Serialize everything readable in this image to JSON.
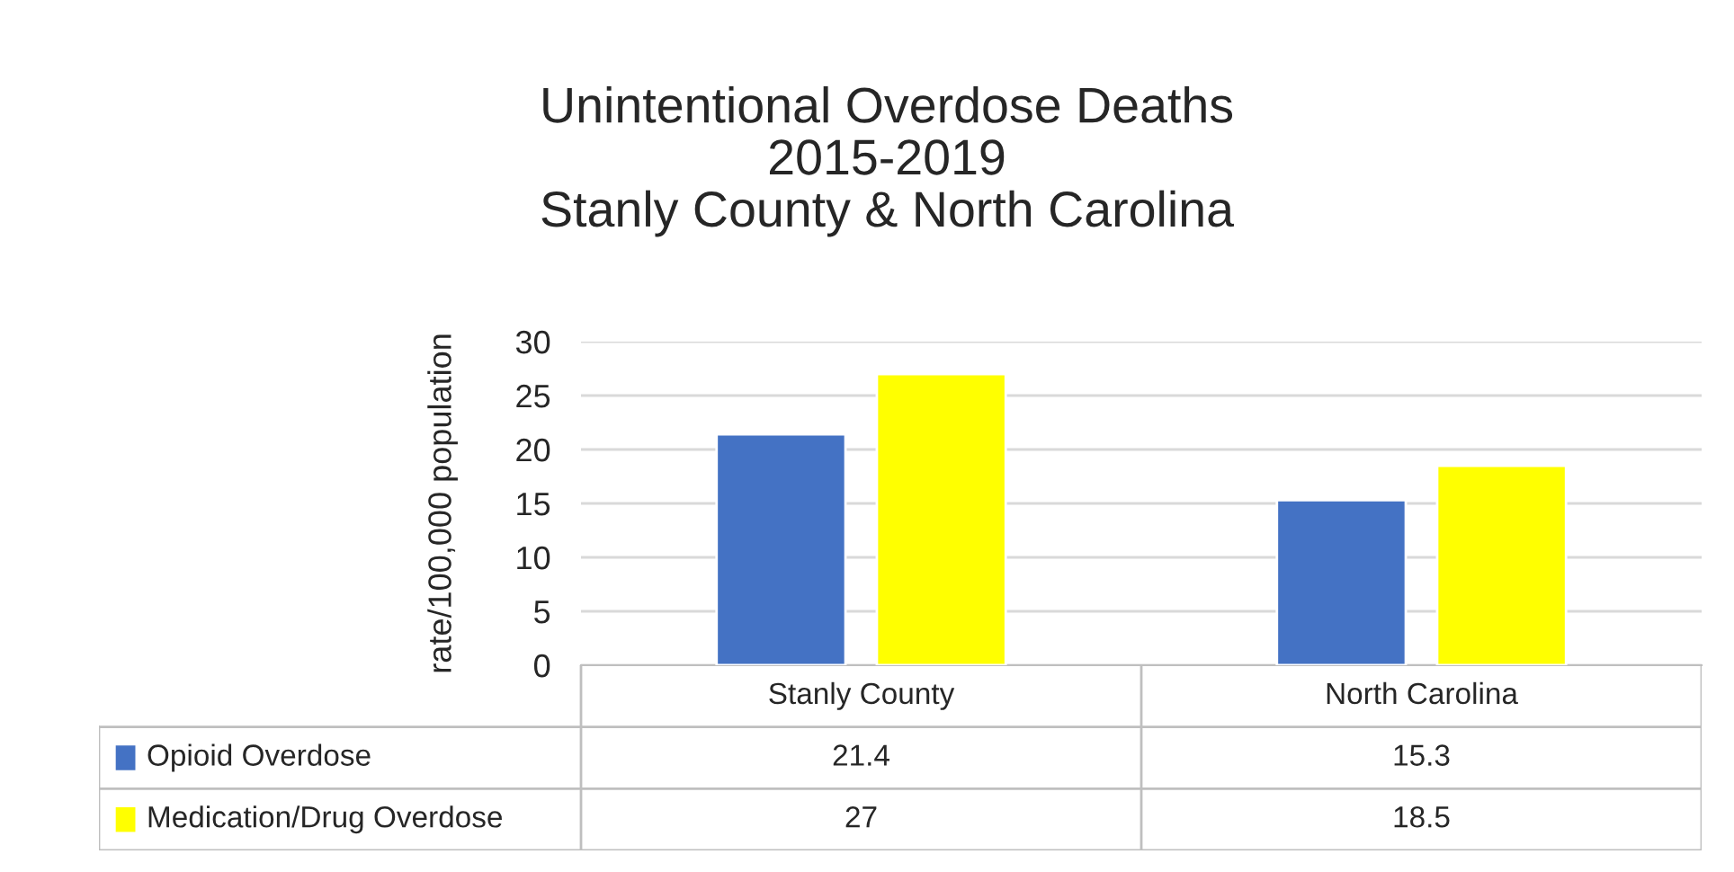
{
  "chart_data": {
    "type": "bar",
    "title": "Unintentional Overdose Deaths\n2015-2019\nStanly County & North Carolina",
    "ylabel": "rate/100,000 population",
    "categories": [
      "Stanly County",
      "North Carolina"
    ],
    "series": [
      {
        "name": "Opioid Overdose",
        "color": "#4472c4",
        "values": [
          21.4,
          15.3
        ]
      },
      {
        "name": "Medication/Drug Overdose",
        "color": "#ffff00",
        "values": [
          27,
          18.5
        ]
      }
    ],
    "ylim": [
      0,
      30
    ],
    "yticks": [
      0,
      5,
      10,
      15,
      20,
      25,
      30
    ],
    "grid": "y",
    "data_labels": true,
    "legend": "bottom"
  }
}
